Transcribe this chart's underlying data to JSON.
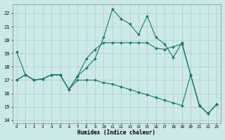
{
  "xlabel": "Humidex (Indice chaleur)",
  "background_color": "#cce8e8",
  "grid_color": "#aacccc",
  "line_color": "#1a7a6e",
  "xlim": [
    -0.5,
    23.5
  ],
  "ylim": [
    13.8,
    22.7
  ],
  "yticks": [
    14,
    15,
    16,
    17,
    18,
    19,
    20,
    21,
    22
  ],
  "xticks": [
    0,
    1,
    2,
    3,
    4,
    5,
    6,
    7,
    8,
    9,
    10,
    11,
    12,
    13,
    14,
    15,
    16,
    17,
    18,
    19,
    20,
    21,
    22,
    23
  ],
  "line1_x": [
    0,
    1,
    2,
    3,
    4,
    5,
    6,
    7,
    8,
    9,
    10,
    11,
    12,
    13,
    14,
    15,
    16,
    17,
    18,
    19,
    20,
    21,
    22,
    23
  ],
  "line1_y": [
    19.1,
    17.4,
    17.0,
    17.1,
    17.4,
    17.4,
    16.3,
    17.3,
    17.9,
    18.6,
    20.2,
    22.3,
    21.6,
    21.2,
    20.4,
    21.8,
    20.2,
    19.7,
    18.7,
    19.8,
    17.4,
    15.1,
    14.5,
    15.2
  ],
  "line2_x": [
    0,
    1,
    2,
    3,
    4,
    5,
    6,
    7,
    8,
    9,
    10,
    11,
    12,
    13,
    14,
    15,
    16,
    17,
    18,
    19,
    20,
    21,
    22,
    23
  ],
  "line2_y": [
    17.0,
    17.4,
    17.0,
    17.1,
    17.4,
    17.4,
    16.3,
    17.3,
    18.6,
    19.3,
    19.8,
    19.8,
    19.8,
    19.8,
    19.8,
    19.8,
    19.4,
    19.3,
    19.5,
    19.7,
    17.4,
    15.1,
    14.5,
    15.2
  ],
  "line3_x": [
    0,
    1,
    2,
    3,
    4,
    5,
    6,
    7,
    8,
    9,
    10,
    11,
    12,
    13,
    14,
    15,
    16,
    17,
    18,
    19,
    20,
    21,
    22,
    23
  ],
  "line3_y": [
    17.0,
    17.4,
    17.0,
    17.1,
    17.4,
    17.4,
    16.3,
    17.0,
    17.0,
    17.0,
    16.8,
    16.7,
    16.5,
    16.3,
    16.1,
    15.9,
    15.7,
    15.5,
    15.3,
    15.1,
    17.4,
    15.1,
    14.5,
    15.2
  ]
}
